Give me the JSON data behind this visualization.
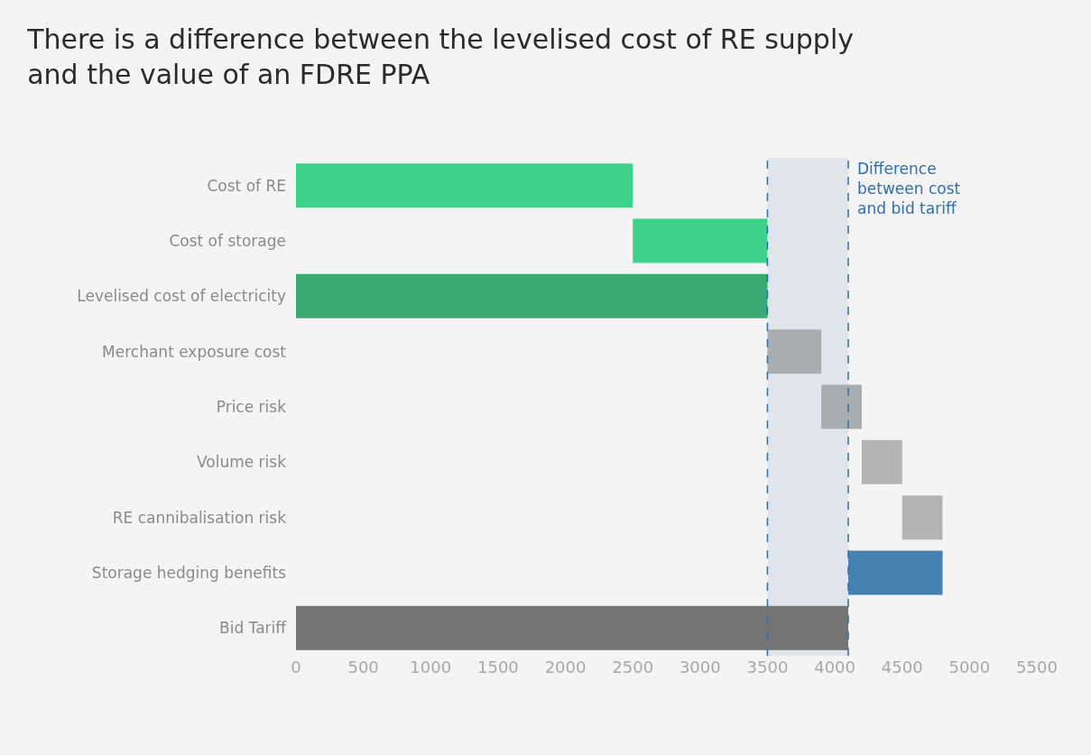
{
  "chart_data": {
    "type": "bar",
    "orientation": "horizontal",
    "title": "There is a difference between the levelised cost of RE supply\nand the value of an FDRE PPA",
    "categories": [
      "Cost of RE",
      "Cost of storage",
      "Levelised cost of electricity",
      "Merchant exposure cost",
      "Price risk",
      "Volume risk",
      "RE cannibalisation risk",
      "Storage hedging benefits",
      "Bid Tariff"
    ],
    "values": [
      2500,
      1000,
      3500,
      400,
      300,
      300,
      300,
      700,
      4100
    ],
    "base": [
      0,
      2500,
      0,
      3500,
      3900,
      4200,
      4500,
      4100,
      0
    ],
    "colors": [
      "#3dd38a",
      "#3dd38a",
      "#3aaa72",
      "#a8adb1",
      "#a8adb1",
      "#b3b3b3",
      "#b3b3b3",
      "#4681b4",
      "#747474"
    ],
    "xlim": [
      0,
      5500
    ],
    "xticks": [
      0,
      500,
      1000,
      1500,
      2000,
      2500,
      3000,
      3500,
      4000,
      4500,
      5000,
      5500
    ],
    "grid": false,
    "ref_lines": [
      {
        "axis": "x",
        "value": 3500,
        "color": "#2f6fae",
        "line_style": "dashed"
      },
      {
        "axis": "x",
        "value": 4100,
        "color": "#2f6fae",
        "line_style": "dashed"
      }
    ],
    "bands": [
      {
        "axis": "x",
        "from": 3500,
        "to": 4100,
        "label": "Difference\nbetween cost\nand bid tariff",
        "color": "#dfe5ea"
      }
    ]
  }
}
